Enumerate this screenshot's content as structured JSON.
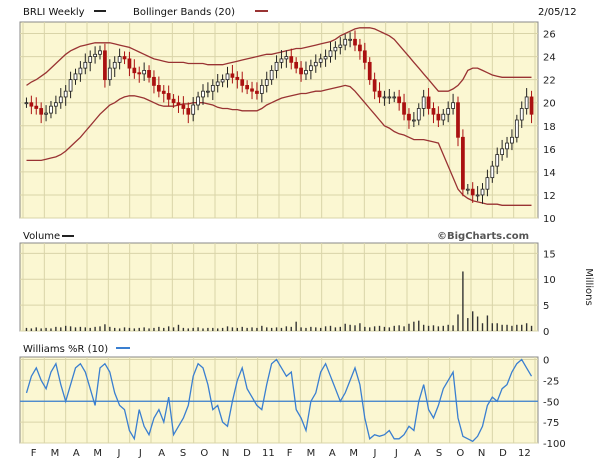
{
  "date": "2/05/12",
  "watermark": "©BigCharts.com",
  "colors": {
    "panel_bg": "#fbf7d2",
    "grid": "#d9d4a8",
    "candle": "#222222",
    "candle_down": "#aa1111",
    "band": "#993333",
    "volume": "#333333",
    "williams": "#3a7fd0"
  },
  "x_labels": [
    "F",
    "M",
    "A",
    "M",
    "J",
    "J",
    "A",
    "S",
    "O",
    "N",
    "D",
    "11",
    "F",
    "M",
    "A",
    "M",
    "J",
    "J",
    "A",
    "S",
    "O",
    "N",
    "D",
    "12"
  ],
  "chart_data": [
    {
      "type": "candlestick",
      "title": "BRLI Weekly",
      "legend": [
        {
          "label": "BRLI Weekly",
          "color": "#222222"
        },
        {
          "label": "Bollinger Bands (20)",
          "color": "#993333"
        }
      ],
      "y_ticks": [
        10,
        12,
        14,
        16,
        18,
        20,
        22,
        24,
        26
      ],
      "ylim": [
        10,
        27
      ],
      "close": [
        20,
        19.7,
        19.5,
        19.0,
        19.1,
        19.7,
        20.0,
        20.5,
        21.0,
        22.0,
        22.5,
        23.0,
        23.5,
        24.0,
        24.2,
        24.5,
        22.0,
        23.0,
        23.5,
        24.0,
        23.8,
        23.0,
        22.6,
        22.5,
        22.8,
        22.2,
        21.5,
        21.0,
        20.8,
        20.3,
        20.0,
        19.8,
        19.5,
        19.0,
        19.8,
        20.5,
        21.0,
        21.0,
        21.5,
        21.8,
        22.0,
        22.5,
        22.2,
        22.0,
        21.5,
        21.2,
        21.0,
        20.8,
        21.5,
        22.0,
        22.8,
        23.5,
        23.8,
        24.0,
        23.5,
        23.0,
        22.5,
        22.8,
        23.2,
        23.5,
        23.8,
        24.0,
        24.5,
        24.8,
        25.0,
        25.5,
        25.5,
        25.0,
        24.5,
        23.5,
        22.0,
        21.0,
        20.5,
        20.5,
        20.5,
        20.5,
        20.0,
        19.0,
        18.5,
        18.5,
        19.5,
        20.5,
        19.5,
        19.0,
        18.5,
        19.0,
        19.5,
        20.0,
        17.0,
        12.5,
        12.5,
        12.0,
        12.0,
        12.5,
        13.5,
        14.5,
        15.5,
        16.0,
        16.5,
        17.0,
        18.5,
        19.5,
        20.5,
        19.0
      ],
      "bollinger_upper": [
        21.5,
        21.8,
        22.0,
        22.3,
        22.6,
        23.0,
        23.4,
        23.8,
        24.2,
        24.5,
        24.7,
        24.9,
        25.0,
        25.1,
        25.2,
        25.2,
        25.2,
        25.2,
        25.1,
        25.0,
        24.9,
        24.8,
        24.6,
        24.4,
        24.2,
        24.0,
        23.8,
        23.7,
        23.6,
        23.5,
        23.5,
        23.5,
        23.5,
        23.4,
        23.4,
        23.4,
        23.4,
        23.3,
        23.3,
        23.3,
        23.3,
        23.4,
        23.5,
        23.6,
        23.7,
        23.8,
        23.9,
        24.0,
        24.1,
        24.2,
        24.2,
        24.3,
        24.4,
        24.5,
        24.6,
        24.7,
        24.7,
        24.8,
        24.9,
        25.0,
        25.1,
        25.2,
        25.3,
        25.5,
        25.8,
        26.0,
        26.2,
        26.4,
        26.5,
        26.5,
        26.5,
        26.4,
        26.2,
        26.0,
        25.8,
        25.5,
        25.0,
        24.5,
        24.0,
        23.5,
        23.0,
        22.5,
        22.0,
        21.5,
        21.0,
        21.0,
        21.0,
        21.2,
        21.5,
        22.0,
        22.8,
        23.0,
        23.0,
        22.8,
        22.6,
        22.4,
        22.3,
        22.2,
        22.2,
        22.2,
        22.2,
        22.2,
        22.2,
        22.2
      ],
      "bollinger_lower": [
        15.0,
        15.0,
        15.0,
        15.0,
        15.1,
        15.2,
        15.3,
        15.5,
        15.8,
        16.2,
        16.6,
        17.0,
        17.5,
        18.0,
        18.5,
        19.0,
        19.4,
        19.8,
        20.0,
        20.3,
        20.5,
        20.6,
        20.6,
        20.5,
        20.4,
        20.2,
        20.0,
        19.8,
        19.7,
        19.7,
        19.7,
        19.8,
        19.9,
        19.9,
        20.0,
        20.0,
        20.0,
        19.9,
        19.8,
        19.6,
        19.5,
        19.5,
        19.4,
        19.4,
        19.3,
        19.3,
        19.3,
        19.3,
        19.5,
        19.8,
        20.0,
        20.2,
        20.4,
        20.5,
        20.6,
        20.7,
        20.8,
        20.8,
        20.9,
        21.0,
        21.0,
        21.1,
        21.2,
        21.3,
        21.4,
        21.5,
        21.4,
        21.0,
        20.5,
        20.0,
        19.5,
        19.0,
        18.5,
        18.0,
        17.8,
        17.5,
        17.3,
        17.2,
        17.0,
        16.8,
        16.8,
        16.8,
        16.7,
        16.6,
        16.5,
        15.5,
        14.5,
        13.5,
        12.5,
        12.0,
        11.7,
        11.5,
        11.4,
        11.3,
        11.2,
        11.2,
        11.2,
        11.1,
        11.1,
        11.1,
        11.1,
        11.1,
        11.1,
        11.1
      ]
    },
    {
      "type": "bar",
      "title": "Volume",
      "ylabel": "Millions",
      "y_ticks": [
        0,
        5,
        10,
        15
      ],
      "ylim": [
        0,
        17
      ],
      "values": [
        0.6,
        0.5,
        0.7,
        0.5,
        0.6,
        0.5,
        0.8,
        0.7,
        1.0,
        0.9,
        0.7,
        0.8,
        0.7,
        0.6,
        0.8,
        0.9,
        1.3,
        0.8,
        0.6,
        0.5,
        0.7,
        0.6,
        0.5,
        0.6,
        0.7,
        0.5,
        0.6,
        0.8,
        0.6,
        0.9,
        0.7,
        1.2,
        0.6,
        0.5,
        0.6,
        0.7,
        0.5,
        0.6,
        0.6,
        0.5,
        0.6,
        0.9,
        0.7,
        0.6,
        0.8,
        0.6,
        0.7,
        0.6,
        1.0,
        0.7,
        0.6,
        0.7,
        0.6,
        0.9,
        0.8,
        1.8,
        0.7,
        0.6,
        0.8,
        0.7,
        0.6,
        0.9,
        1.0,
        0.7,
        0.8,
        1.4,
        1.2,
        1.1,
        1.5,
        0.8,
        0.7,
        0.9,
        1.0,
        0.8,
        0.7,
        1.0,
        1.1,
        0.9,
        1.4,
        1.8,
        2.0,
        1.2,
        1.0,
        1.1,
        0.9,
        1.0,
        1.2,
        1.1,
        3.2,
        11.5,
        2.5,
        3.8,
        2.8,
        1.5,
        3.0,
        1.5,
        1.5,
        1.2,
        1.2,
        1.0,
        1.2,
        1.2,
        1.5,
        1.0
      ]
    },
    {
      "type": "line",
      "title": "Williams %R (10)",
      "legend": [
        {
          "label": "Williams %R (10)",
          "color": "#3a7fd0"
        }
      ],
      "y_ticks": [
        0,
        -25,
        -50,
        -75,
        -100
      ],
      "y_tick_labels": [
        "0",
        "-25",
        "-50",
        "-75",
        "-100"
      ],
      "ylim": [
        -100,
        3
      ],
      "reference_line": -50,
      "values": [
        -40,
        -20,
        -10,
        -25,
        -35,
        -15,
        -5,
        -30,
        -50,
        -30,
        -10,
        -5,
        -15,
        -35,
        -55,
        -10,
        -5,
        -15,
        -40,
        -55,
        -60,
        -85,
        -95,
        -60,
        -80,
        -90,
        -70,
        -60,
        -75,
        -45,
        -90,
        -80,
        -70,
        -55,
        -20,
        -5,
        -10,
        -30,
        -60,
        -55,
        -75,
        -80,
        -50,
        -25,
        -10,
        -35,
        -45,
        -55,
        -60,
        -30,
        -5,
        0,
        -10,
        -20,
        -15,
        -60,
        -70,
        -85,
        -50,
        -40,
        -15,
        -5,
        -20,
        -35,
        -50,
        -40,
        -25,
        -10,
        -30,
        -70,
        -95,
        -90,
        -92,
        -90,
        -85,
        -95,
        -95,
        -90,
        -80,
        -85,
        -50,
        -30,
        -60,
        -70,
        -55,
        -35,
        -25,
        -15,
        -70,
        -92,
        -95,
        -98,
        -92,
        -80,
        -55,
        -45,
        -50,
        -35,
        -30,
        -15,
        -5,
        0,
        -10,
        -20
      ]
    }
  ]
}
